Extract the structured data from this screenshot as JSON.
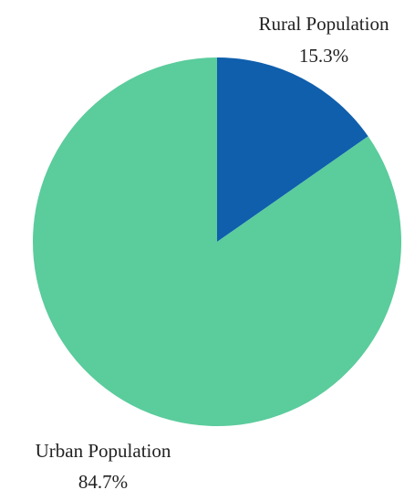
{
  "chart_data": {
    "type": "pie",
    "title": "",
    "start_angle_deg": 0,
    "direction": "clockwise",
    "slices": [
      {
        "label": "Rural Population",
        "value": 15.3,
        "value_label": "15.3%",
        "color": "#0f5fad"
      },
      {
        "label": "Urban Population",
        "value": 84.7,
        "value_label": "84.7%",
        "color": "#5bcc9c"
      }
    ],
    "legend": "none"
  }
}
